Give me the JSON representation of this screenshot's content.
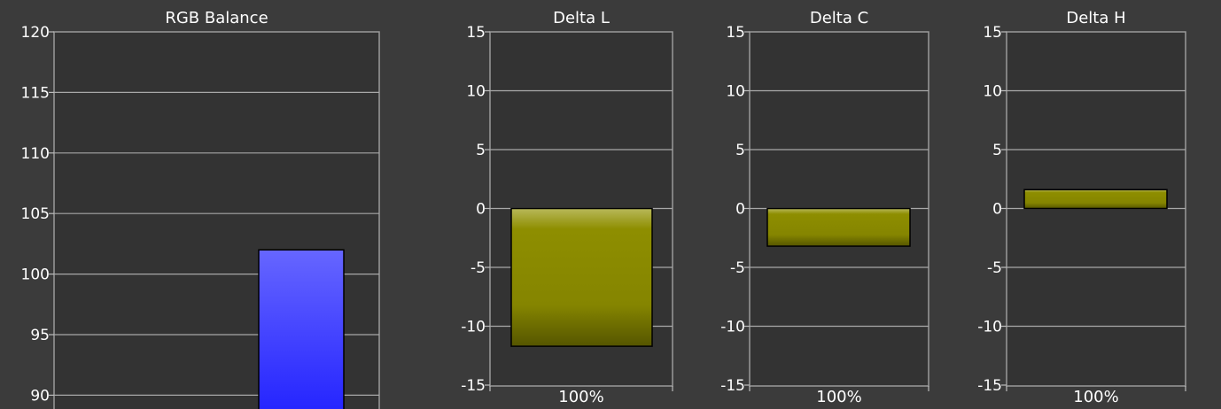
{
  "chart_data": [
    {
      "type": "bar",
      "title": "RGB Balance",
      "ylim": [
        88,
        120
      ],
      "yticks": [
        90,
        95,
        100,
        105,
        110,
        115,
        120
      ],
      "grid": true,
      "categories": [
        ""
      ],
      "series": [
        {
          "values": [
            102
          ],
          "color": "#3a3aff"
        }
      ]
    },
    {
      "type": "bar",
      "title": "Delta L",
      "ylim": [
        -15,
        15
      ],
      "yticks": [
        -15,
        -10,
        -5,
        0,
        5,
        10,
        15
      ],
      "grid": true,
      "categories": [
        "100%"
      ],
      "series": [
        {
          "values": [
            -11.7
          ],
          "color": "#8a8a00"
        }
      ]
    },
    {
      "type": "bar",
      "title": "Delta C",
      "ylim": [
        -15,
        15
      ],
      "yticks": [
        -15,
        -10,
        -5,
        0,
        5,
        10,
        15
      ],
      "grid": true,
      "categories": [
        "100%"
      ],
      "series": [
        {
          "values": [
            -3.2
          ],
          "color": "#8a8a00"
        }
      ]
    },
    {
      "type": "bar",
      "title": "Delta H",
      "ylim": [
        -15,
        15
      ],
      "yticks": [
        -15,
        -10,
        -5,
        0,
        5,
        10,
        15
      ],
      "grid": true,
      "categories": [
        "100%"
      ],
      "series": [
        {
          "values": [
            1.6
          ],
          "color": "#8a8a00"
        }
      ]
    }
  ]
}
